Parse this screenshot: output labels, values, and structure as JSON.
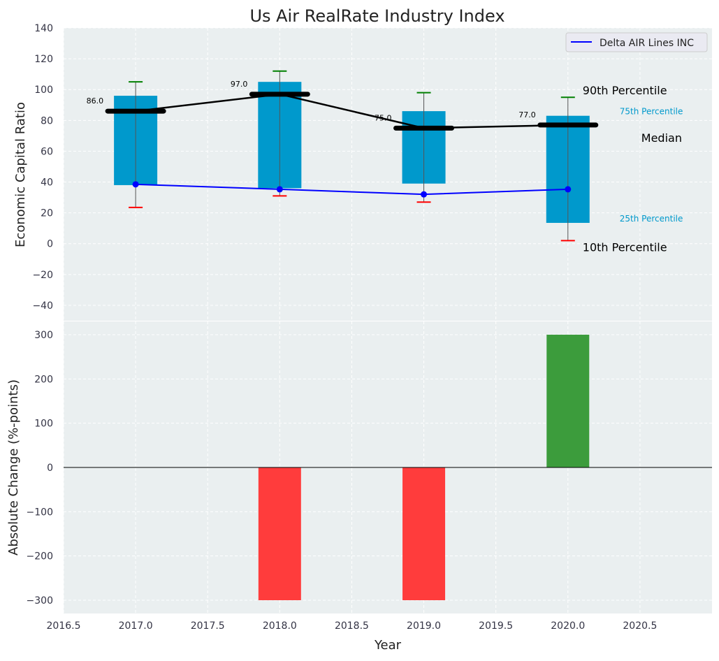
{
  "chart_data": [
    {
      "type": "bar",
      "title": "Us Air RealRate Industry Index",
      "xlabel": "",
      "ylabel": "Economic Capital Ratio",
      "xlim": [
        2016.5,
        2021.0
      ],
      "ylim": [
        -50,
        140
      ],
      "yticks": [
        -40,
        -20,
        0,
        20,
        40,
        60,
        80,
        100,
        120,
        140
      ],
      "yticklabels": [
        "−40",
        "−20",
        "0",
        "20",
        "40",
        "60",
        "80",
        "100",
        "120",
        "140"
      ],
      "grid": true,
      "years": [
        2017,
        2018,
        2019,
        2020
      ],
      "p25": [
        38,
        36,
        39,
        13.5
      ],
      "p75": [
        96,
        105,
        86,
        83
      ],
      "p10": [
        23.5,
        31,
        27,
        2
      ],
      "p90": [
        105,
        112,
        98,
        95
      ],
      "median": [
        86,
        97,
        75,
        77
      ],
      "median_labels": [
        "86.0",
        "97.0",
        "75.0",
        "77.0"
      ],
      "series": [
        {
          "name": "Delta AIR Lines INC",
          "values": [
            38.5,
            35.3,
            32,
            35.3
          ],
          "color": "#0000ff"
        }
      ],
      "legend": {
        "position": "top-right",
        "label": "Delta AIR Lines INC"
      },
      "annotations": {
        "p90": "90th Percentile",
        "p75": "75th Percentile",
        "median": "Median",
        "p25": "25th Percentile",
        "p10": "10th Percentile"
      },
      "colors": {
        "box": "#0099cc",
        "median": "#000000",
        "p90": "#008000",
        "p10": "#ff0000",
        "bg": "#eaeff0"
      }
    },
    {
      "type": "bar",
      "xlabel": "Year",
      "ylabel": "Absolute Change (%-points)",
      "xlim": [
        2016.5,
        2021.0
      ],
      "ylim": [
        -330,
        330
      ],
      "yticks": [
        -300,
        -200,
        -100,
        0,
        100,
        200,
        300
      ],
      "yticklabels": [
        "−300",
        "−200",
        "−100",
        "0",
        "100",
        "200",
        "300"
      ],
      "xticks": [
        2016.5,
        2017,
        2017.5,
        2018,
        2018.5,
        2019,
        2019.5,
        2020,
        2020.5
      ],
      "xticklabels": [
        "2016.5",
        "2017.0",
        "2017.5",
        "2018.0",
        "2018.5",
        "2019.0",
        "2019.5",
        "2020.0",
        "2020.5"
      ],
      "years": [
        2018,
        2019,
        2020
      ],
      "values": [
        -300,
        -300,
        300
      ],
      "colors": {
        "positive": "#3c9c3c",
        "negative": "#ff3c3c"
      }
    }
  ]
}
